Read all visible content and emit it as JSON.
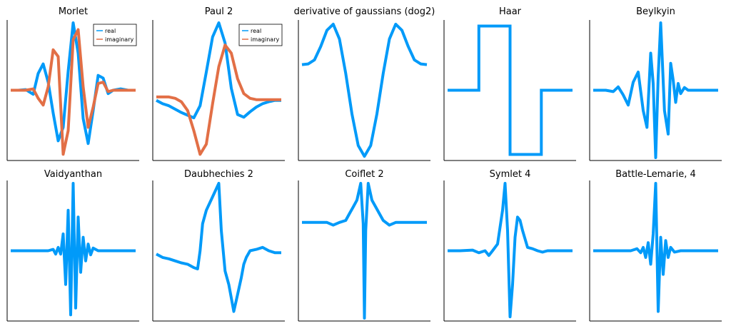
{
  "figure": {
    "colors": {
      "real": "#009af9",
      "imaginary": "#e26f46",
      "axis": "#000000",
      "legend_border": "#000000"
    }
  },
  "chart_data": [
    {
      "type": "line",
      "title": "Morlet",
      "grid": false,
      "legend": {
        "position": "top-right",
        "entries": [
          "real",
          "imaginary"
        ]
      },
      "ylim": [
        -1,
        1
      ],
      "series": [
        {
          "name": "real",
          "color": "#009af9",
          "x": [
            0,
            0.06,
            0.12,
            0.18,
            0.22,
            0.26,
            0.3,
            0.34,
            0.38,
            0.42,
            0.46,
            0.5,
            0.54,
            0.58,
            0.62,
            0.66,
            0.7,
            0.74,
            0.78,
            0.82,
            0.88,
            0.94,
            1
          ],
          "y": [
            0,
            0,
            0.01,
            -0.06,
            0.25,
            0.39,
            0.12,
            -0.34,
            -0.75,
            -0.55,
            0.28,
            1.0,
            0.55,
            -0.42,
            -0.79,
            -0.3,
            0.22,
            0.18,
            -0.05,
            0,
            0.02,
            0,
            0
          ]
        },
        {
          "name": "imaginary",
          "color": "#e26f46",
          "x": [
            0,
            0.06,
            0.12,
            0.18,
            0.22,
            0.26,
            0.3,
            0.34,
            0.38,
            0.42,
            0.46,
            0.5,
            0.54,
            0.58,
            0.62,
            0.66,
            0.7,
            0.74,
            0.78,
            0.82,
            0.88,
            0.94,
            1
          ],
          "y": [
            0,
            0,
            0,
            0.02,
            -0.12,
            -0.22,
            0.05,
            0.6,
            0.5,
            -0.95,
            -0.6,
            0.75,
            0.9,
            0.05,
            -0.55,
            -0.25,
            0.1,
            0.12,
            -0.02,
            0,
            0,
            0,
            0
          ]
        }
      ]
    },
    {
      "type": "line",
      "title": "Paul 2",
      "grid": false,
      "legend": {
        "position": "top-right",
        "entries": [
          "real",
          "imaginary"
        ]
      },
      "ylim": [
        -1,
        1
      ],
      "series": [
        {
          "name": "real",
          "color": "#009af9",
          "x": [
            0,
            0.05,
            0.1,
            0.15,
            0.2,
            0.25,
            0.3,
            0.35,
            0.4,
            0.45,
            0.5,
            0.55,
            0.6,
            0.65,
            0.7,
            0.75,
            0.8,
            0.85,
            0.9,
            0.95,
            1
          ],
          "y": [
            -0.15,
            -0.2,
            -0.23,
            -0.28,
            -0.33,
            -0.37,
            -0.41,
            -0.23,
            0.27,
            0.79,
            1.0,
            0.7,
            0.03,
            -0.36,
            -0.4,
            -0.32,
            -0.25,
            -0.2,
            -0.17,
            -0.15,
            -0.15
          ]
        },
        {
          "name": "imaginary",
          "color": "#e26f46",
          "x": [
            0,
            0.05,
            0.1,
            0.15,
            0.2,
            0.25,
            0.3,
            0.35,
            0.4,
            0.45,
            0.5,
            0.55,
            0.6,
            0.65,
            0.7,
            0.75,
            0.8,
            0.85,
            0.9,
            0.95,
            1
          ],
          "y": [
            -0.1,
            -0.1,
            -0.1,
            -0.12,
            -0.17,
            -0.3,
            -0.6,
            -0.95,
            -0.8,
            -0.2,
            0.35,
            0.67,
            0.55,
            0.17,
            -0.05,
            -0.12,
            -0.14,
            -0.14,
            -0.14,
            -0.14,
            -0.14
          ]
        }
      ]
    },
    {
      "type": "line",
      "title": "derivative of gaussians (dog2)",
      "grid": false,
      "ylim": [
        -1,
        1
      ],
      "series": [
        {
          "color": "#009af9",
          "x": [
            0,
            0.05,
            0.1,
            0.15,
            0.2,
            0.25,
            0.3,
            0.35,
            0.4,
            0.45,
            0.5,
            0.55,
            0.6,
            0.65,
            0.7,
            0.75,
            0.8,
            0.85,
            0.9,
            0.95,
            1
          ],
          "y": [
            0.38,
            0.39,
            0.45,
            0.65,
            0.89,
            0.98,
            0.76,
            0.25,
            -0.35,
            -0.82,
            -0.98,
            -0.82,
            -0.35,
            0.25,
            0.76,
            0.98,
            0.89,
            0.65,
            0.45,
            0.39,
            0.38
          ]
        }
      ]
    },
    {
      "type": "line",
      "title": "Haar",
      "grid": false,
      "ylim": [
        -1.05,
        1.05
      ],
      "series": [
        {
          "color": "#009af9",
          "x": [
            0,
            0.25,
            0.25,
            0.5,
            0.5,
            0.75,
            0.75,
            1
          ],
          "y": [
            0,
            0,
            1,
            1,
            -1,
            -1,
            0,
            0
          ]
        }
      ]
    },
    {
      "type": "line",
      "title": "Beylkyin",
      "grid": false,
      "ylim": [
        -1,
        1
      ],
      "series": [
        {
          "color": "#009af9",
          "x": [
            0,
            0.1,
            0.16,
            0.2,
            0.24,
            0.28,
            0.32,
            0.36,
            0.4,
            0.43,
            0.46,
            0.48,
            0.5,
            0.52,
            0.54,
            0.57,
            0.6,
            0.62,
            0.64,
            0.66,
            0.68,
            0.7,
            0.73,
            0.76,
            0.8,
            0.9,
            1
          ],
          "y": [
            0,
            0,
            -0.02,
            0.05,
            -0.07,
            -0.22,
            0.12,
            0.27,
            -0.3,
            -0.55,
            0.55,
            0.1,
            -1.0,
            0.2,
            1.0,
            -0.3,
            -0.65,
            0.4,
            0.15,
            -0.18,
            0.1,
            -0.05,
            0.04,
            0,
            0,
            0,
            0
          ]
        }
      ]
    },
    {
      "type": "line",
      "title": "Vaidyanthan",
      "grid": false,
      "ylim": [
        -1,
        1
      ],
      "series": [
        {
          "color": "#009af9",
          "x": [
            0,
            0.3,
            0.34,
            0.36,
            0.38,
            0.4,
            0.42,
            0.44,
            0.46,
            0.48,
            0.5,
            0.52,
            0.54,
            0.56,
            0.58,
            0.6,
            0.62,
            0.64,
            0.66,
            0.7,
            0.74,
            0.78,
            0.85,
            1
          ],
          "y": [
            0,
            0,
            0.02,
            -0.05,
            0.05,
            -0.05,
            0.25,
            -0.5,
            0.6,
            -0.95,
            1.0,
            -0.85,
            0.5,
            -0.32,
            0.2,
            -0.15,
            0.1,
            -0.06,
            0.04,
            0,
            0,
            0,
            0,
            0
          ]
        }
      ]
    },
    {
      "type": "line",
      "title": "Daubhechies 2",
      "grid": false,
      "ylim": [
        -1,
        1
      ],
      "series": [
        {
          "color": "#009af9",
          "x": [
            0,
            0.05,
            0.1,
            0.15,
            0.2,
            0.25,
            0.3,
            0.33,
            0.35,
            0.37,
            0.4,
            0.45,
            0.5,
            0.52,
            0.55,
            0.58,
            0.6,
            0.62,
            0.65,
            0.68,
            0.7,
            0.72,
            0.75,
            0.8,
            0.85,
            0.9,
            0.95,
            1
          ],
          "y": [
            -0.05,
            -0.1,
            -0.12,
            -0.15,
            -0.18,
            -0.2,
            -0.25,
            -0.27,
            0,
            0.4,
            0.6,
            0.8,
            1.0,
            0.3,
            -0.3,
            -0.5,
            -0.7,
            -0.9,
            -0.65,
            -0.4,
            -0.2,
            -0.1,
            0,
            0.02,
            0.05,
            0.0,
            -0.03,
            -0.03
          ]
        }
      ]
    },
    {
      "type": "line",
      "title": "Coiflet 2",
      "grid": false,
      "ylim": [
        -1,
        1
      ],
      "series": [
        {
          "color": "#009af9",
          "x": [
            0,
            0.2,
            0.25,
            0.3,
            0.35,
            0.38,
            0.41,
            0.44,
            0.47,
            0.49,
            0.5,
            0.51,
            0.53,
            0.56,
            0.59,
            0.62,
            0.65,
            0.7,
            0.75,
            0.8,
            1
          ],
          "y": [
            0.42,
            0.42,
            0.38,
            0.42,
            0.45,
            0.55,
            0.65,
            0.75,
            1.0,
            0.4,
            -1.0,
            0.3,
            1.0,
            0.75,
            0.65,
            0.55,
            0.45,
            0.38,
            0.42,
            0.42,
            0.42
          ]
        }
      ]
    },
    {
      "type": "line",
      "title": "Symlet 4",
      "grid": false,
      "ylim": [
        -1,
        1
      ],
      "series": [
        {
          "color": "#009af9",
          "x": [
            0,
            0.1,
            0.2,
            0.25,
            0.3,
            0.33,
            0.36,
            0.4,
            0.44,
            0.46,
            0.48,
            0.5,
            0.52,
            0.54,
            0.56,
            0.58,
            0.6,
            0.64,
            0.68,
            0.72,
            0.76,
            0.8,
            0.9,
            1
          ],
          "y": [
            0,
            0,
            0.01,
            -0.03,
            0.0,
            -0.07,
            0.0,
            0.1,
            0.6,
            1.0,
            0.3,
            -0.98,
            -0.5,
            0.2,
            0.5,
            0.45,
            0.3,
            0.05,
            0.03,
            0.0,
            -0.02,
            0.0,
            0.0,
            0.0
          ]
        }
      ]
    },
    {
      "type": "line",
      "title": "Battle-Lemarie, 4",
      "grid": false,
      "ylim": [
        -1,
        1
      ],
      "series": [
        {
          "color": "#009af9",
          "x": [
            0,
            0.2,
            0.3,
            0.35,
            0.38,
            0.4,
            0.42,
            0.44,
            0.46,
            0.48,
            0.5,
            0.52,
            0.54,
            0.56,
            0.58,
            0.6,
            0.62,
            0.65,
            0.7,
            0.8,
            1
          ],
          "y": [
            0,
            0,
            0,
            0.03,
            -0.03,
            0.05,
            -0.1,
            0.12,
            -0.2,
            0.25,
            1.0,
            -0.9,
            0.2,
            -0.35,
            0.15,
            -0.1,
            0.05,
            -0.02,
            0.0,
            0.0,
            0.0
          ]
        }
      ]
    }
  ]
}
